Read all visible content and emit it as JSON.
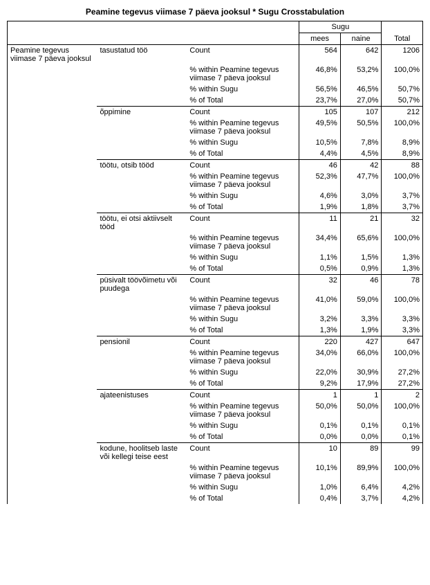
{
  "title": "Peamine tegevus viimase 7 päeva jooksul * Sugu Crosstabulation",
  "row_group_label": "Peamine tegevus viimase 7 päeva jooksul",
  "col_header": {
    "group": "Sugu",
    "cols": [
      "mees",
      "naine"
    ],
    "total": "Total"
  },
  "stat_labels": {
    "count": "Count",
    "pct_row": "% within Peamine tegevus viimase 7 päeva jooksul",
    "pct_col": "% within Sugu",
    "pct_total": "% of Total"
  },
  "categories": [
    {
      "label": "tasustatud töö",
      "count": [
        "564",
        "642",
        "1206"
      ],
      "pct_row": [
        "46,8%",
        "53,2%",
        "100,0%"
      ],
      "pct_col": [
        "56,5%",
        "46,5%",
        "50,7%"
      ],
      "pct_total": [
        "23,7%",
        "27,0%",
        "50,7%"
      ]
    },
    {
      "label": "õppimine",
      "count": [
        "105",
        "107",
        "212"
      ],
      "pct_row": [
        "49,5%",
        "50,5%",
        "100,0%"
      ],
      "pct_col": [
        "10,5%",
        "7,8%",
        "8,9%"
      ],
      "pct_total": [
        "4,4%",
        "4,5%",
        "8,9%"
      ]
    },
    {
      "label": "töötu, otsib tööd",
      "count": [
        "46",
        "42",
        "88"
      ],
      "pct_row": [
        "52,3%",
        "47,7%",
        "100,0%"
      ],
      "pct_col": [
        "4,6%",
        "3,0%",
        "3,7%"
      ],
      "pct_total": [
        "1,9%",
        "1,8%",
        "3,7%"
      ]
    },
    {
      "label": "töötu, ei otsi aktiivselt tööd",
      "count": [
        "11",
        "21",
        "32"
      ],
      "pct_row": [
        "34,4%",
        "65,6%",
        "100,0%"
      ],
      "pct_col": [
        "1,1%",
        "1,5%",
        "1,3%"
      ],
      "pct_total": [
        "0,5%",
        "0,9%",
        "1,3%"
      ]
    },
    {
      "label": "püsivalt töövõimetu või puudega",
      "count": [
        "32",
        "46",
        "78"
      ],
      "pct_row": [
        "41,0%",
        "59,0%",
        "100,0%"
      ],
      "pct_col": [
        "3,2%",
        "3,3%",
        "3,3%"
      ],
      "pct_total": [
        "1,3%",
        "1,9%",
        "3,3%"
      ]
    },
    {
      "label": "pensionil",
      "count": [
        "220",
        "427",
        "647"
      ],
      "pct_row": [
        "34,0%",
        "66,0%",
        "100,0%"
      ],
      "pct_col": [
        "22,0%",
        "30,9%",
        "27,2%"
      ],
      "pct_total": [
        "9,2%",
        "17,9%",
        "27,2%"
      ]
    },
    {
      "label": "ajateenistuses",
      "count": [
        "1",
        "1",
        "2"
      ],
      "pct_row": [
        "50,0%",
        "50,0%",
        "100,0%"
      ],
      "pct_col": [
        "0,1%",
        "0,1%",
        "0,1%"
      ],
      "pct_total": [
        "0,0%",
        "0,0%",
        "0,1%"
      ]
    },
    {
      "label": "kodune, hoolitseb laste või kellegi teise eest",
      "count": [
        "10",
        "89",
        "99"
      ],
      "pct_row": [
        "10,1%",
        "89,9%",
        "100,0%"
      ],
      "pct_col": [
        "1,0%",
        "6,4%",
        "4,2%"
      ],
      "pct_total": [
        "0,4%",
        "3,7%",
        "4,2%"
      ]
    }
  ]
}
